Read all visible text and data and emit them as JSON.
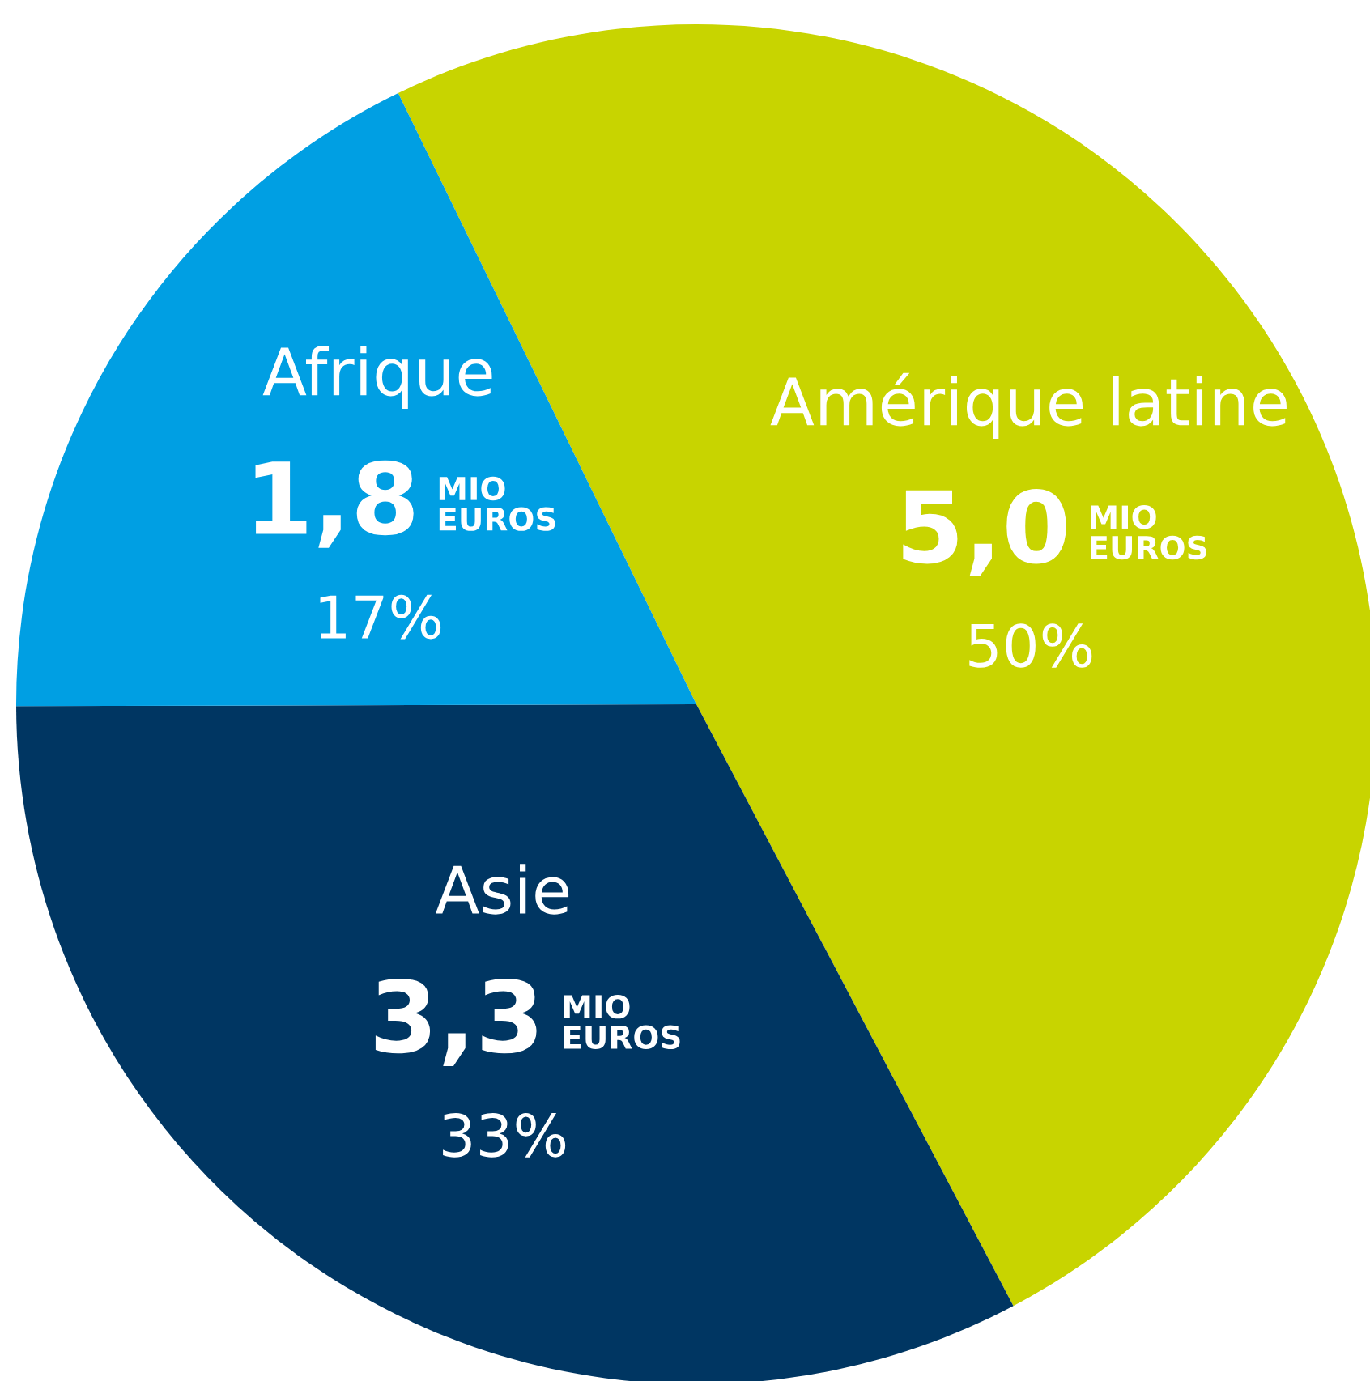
{
  "chart_data": {
    "type": "pie",
    "categories": [
      "Amérique latine",
      "Asie",
      "Afrique"
    ],
    "values": [
      5.0,
      3.3,
      1.8
    ],
    "value_labels": [
      "5,0",
      "3,3",
      "1,8"
    ],
    "colors": [
      "#c8d400",
      "#003662",
      "#009fe3"
    ],
    "annotations": [
      "50%",
      "33%",
      "17%",
      "MIO EUROS",
      "MIO EUROS",
      "MIO EUROS"
    ],
    "legend": false
  }
}
